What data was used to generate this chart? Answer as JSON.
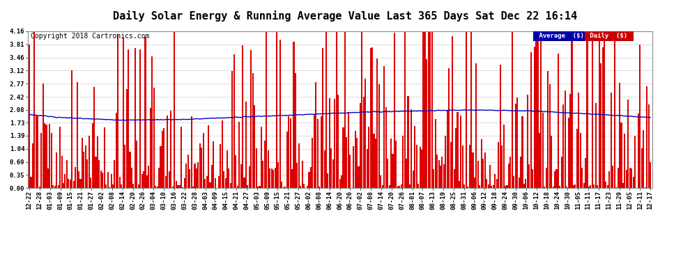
{
  "title": "Daily Solar Energy & Running Average Value Last 365 Days Sat Dec 22 16:14",
  "copyright": "Copyright 2018 Cartronics.com",
  "legend_avg": "Average  ($)",
  "legend_daily": "Daily  ($)",
  "legend_avg_color": "#0000bb",
  "legend_daily_color": "#dd0000",
  "bar_color": "#dd0000",
  "line_color": "#0000bb",
  "background_color": "#ffffff",
  "grid_color": "#bbbbbb",
  "ylim": [
    0.0,
    4.16
  ],
  "yticks": [
    0.0,
    0.35,
    0.69,
    1.04,
    1.39,
    1.73,
    2.08,
    2.42,
    2.77,
    3.12,
    3.46,
    3.81,
    4.16
  ],
  "xtick_labels": [
    "12-22",
    "12-28",
    "01-03",
    "01-09",
    "01-15",
    "01-21",
    "01-27",
    "02-02",
    "02-08",
    "02-14",
    "02-20",
    "02-26",
    "03-04",
    "03-10",
    "03-16",
    "03-22",
    "03-28",
    "04-03",
    "04-09",
    "04-15",
    "04-21",
    "04-27",
    "05-03",
    "05-09",
    "05-15",
    "05-21",
    "05-27",
    "06-02",
    "06-08",
    "06-14",
    "06-20",
    "06-26",
    "07-02",
    "07-08",
    "07-14",
    "07-20",
    "07-26",
    "08-01",
    "08-07",
    "08-13",
    "08-19",
    "08-25",
    "08-31",
    "09-06",
    "09-12",
    "09-18",
    "09-24",
    "09-30",
    "10-06",
    "10-12",
    "10-18",
    "10-24",
    "10-30",
    "11-05",
    "11-11",
    "11-17",
    "11-23",
    "11-29",
    "12-05",
    "12-11",
    "12-17"
  ],
  "title_fontsize": 11,
  "axis_fontsize": 6.5,
  "copyright_fontsize": 7
}
